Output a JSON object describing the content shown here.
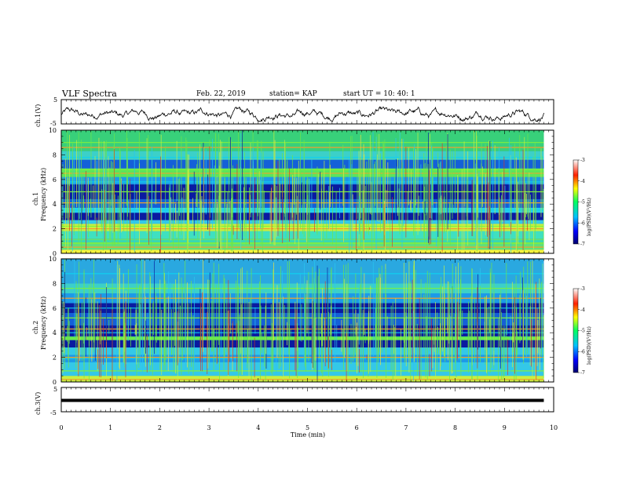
{
  "header": {
    "title": "VLF Spectra",
    "date": "Feb. 22, 2019",
    "station": "station= KAP",
    "start_ut": "start  UT =   10: 40: 1"
  },
  "chart_data": [
    {
      "type": "line",
      "name": "ch1-waveform",
      "ylabel": "ch.1(V)",
      "ylim": [
        -5,
        5
      ],
      "yticks": [
        "5",
        "-5"
      ],
      "xlim": [
        0,
        10
      ],
      "amplitude_range": [
        -4,
        2
      ],
      "color": "#000000"
    },
    {
      "type": "heatmap",
      "name": "ch1-spectrogram",
      "ylabel_line1": "ch.1",
      "ylabel_line2": "Frequency  (kHz)",
      "ylim": [
        0,
        10
      ],
      "yticks": [
        "0",
        "2",
        "4",
        "6",
        "8",
        "10"
      ],
      "xlim": [
        0,
        10
      ],
      "colorbar": {
        "label": "log(PSD)(V²/Hz)",
        "range": [
          -7,
          -3
        ],
        "ticks": [
          "-3",
          "-4",
          "-5",
          "-6",
          "-7"
        ]
      }
    },
    {
      "type": "heatmap",
      "name": "ch2-spectrogram",
      "ylabel_line1": "ch.2",
      "ylabel_line2": "Frequency  (kHz)",
      "ylim": [
        0,
        10
      ],
      "yticks": [
        "0",
        "2",
        "4",
        "6",
        "8",
        "10"
      ],
      "xlim": [
        0,
        10
      ],
      "colorbar": {
        "label": "log(PSD)(V²/Hz)",
        "range": [
          -7,
          -3
        ],
        "ticks": [
          "-3",
          "-4",
          "-5",
          "-6",
          "-7"
        ]
      }
    },
    {
      "type": "line",
      "name": "ch3-waveform",
      "ylabel": "ch.3(V)",
      "ylim": [
        -5,
        5
      ],
      "yticks": [
        "5",
        "-5"
      ],
      "xlim": [
        0,
        10
      ],
      "value": 0,
      "color": "#000000"
    }
  ],
  "xaxis": {
    "label": "Time  (min)",
    "ticks": [
      "0",
      "1",
      "2",
      "3",
      "4",
      "5",
      "6",
      "7",
      "8",
      "9",
      "10"
    ],
    "data_end": 9.8
  }
}
